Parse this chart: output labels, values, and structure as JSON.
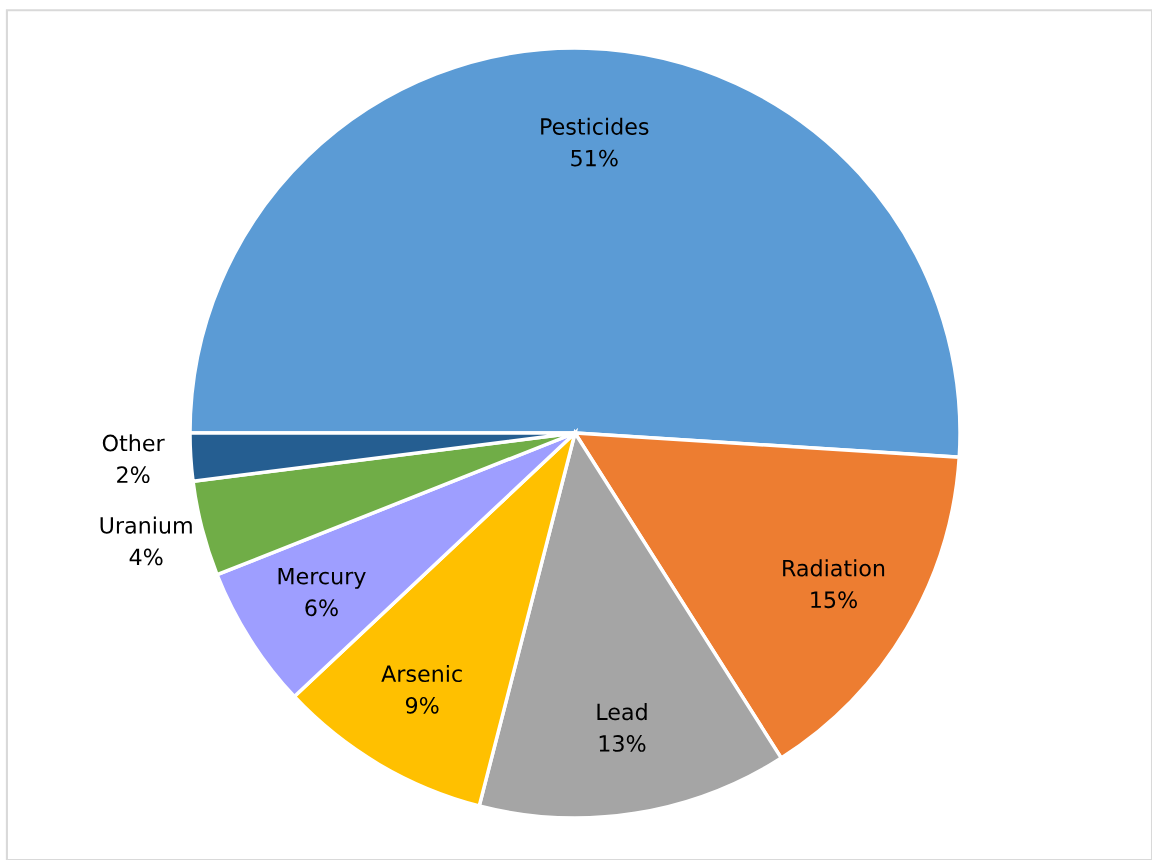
{
  "chart_data": {
    "type": "pie",
    "categories": [
      "Pesticides",
      "Radiation",
      "Lead",
      "Arsenic",
      "Mercury",
      "Uranium",
      "Other"
    ],
    "values": [
      51,
      15,
      13,
      9,
      6,
      4,
      2
    ],
    "colors": [
      "#5b9bd5",
      "#ed7d31",
      "#a5a5a5",
      "#ffc000",
      "#9e9eff",
      "#70ad47",
      "#255e91"
    ],
    "value_labels": [
      "51%",
      "15%",
      "13%",
      "9%",
      "6%",
      "4%",
      "2%"
    ],
    "legend": false
  }
}
